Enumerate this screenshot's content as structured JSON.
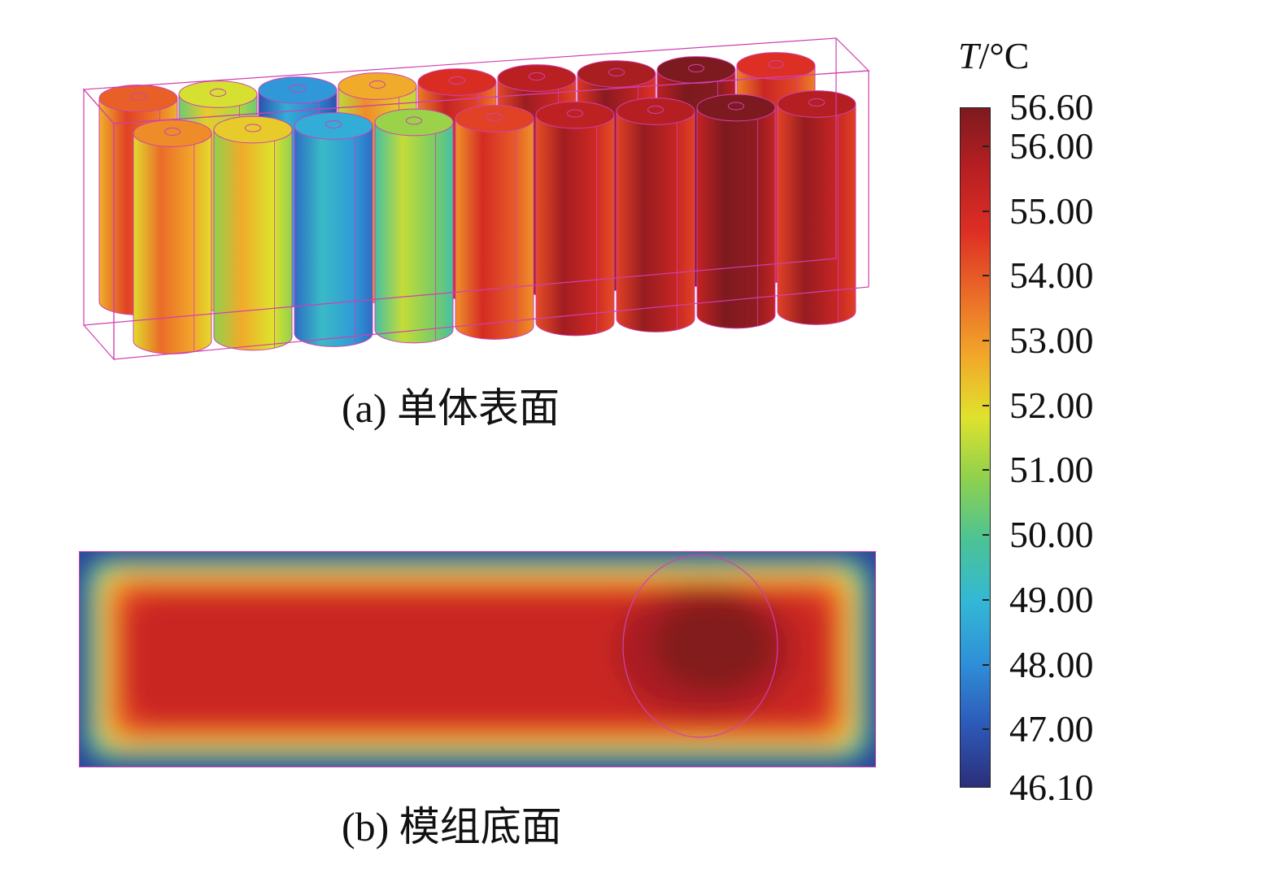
{
  "panels": {
    "a": {
      "caption": "(a) 单体表面"
    },
    "b": {
      "caption": "(b) 模组底面"
    }
  },
  "legend": {
    "symbol": "T",
    "unit": "/°C",
    "min": 46.1,
    "max": 56.6,
    "labels": [
      {
        "text": "56.60",
        "value": 56.6
      },
      {
        "text": "56.00",
        "value": 56.0
      },
      {
        "text": "55.00",
        "value": 55.0
      },
      {
        "text": "54.00",
        "value": 54.0
      },
      {
        "text": "53.00",
        "value": 53.0
      },
      {
        "text": "52.00",
        "value": 52.0
      },
      {
        "text": "51.00",
        "value": 51.0
      },
      {
        "text": "50.00",
        "value": 50.0
      },
      {
        "text": "49.00",
        "value": 49.0
      },
      {
        "text": "48.00",
        "value": 48.0
      },
      {
        "text": "47.00",
        "value": 47.0
      },
      {
        "text": "46.10",
        "value": 46.1
      }
    ],
    "colormap": [
      "#2b2f7a",
      "#2d59b8",
      "#2f8fd8",
      "#33b8d6",
      "#4cc394",
      "#8fd14e",
      "#e0e22c",
      "#f2a62a",
      "#ea6a28",
      "#dd2f24",
      "#b81f22",
      "#7d1a1f"
    ]
  },
  "cells_front_row": [
    52.8,
    51.8,
    48.3,
    50.6,
    54.0,
    55.1,
    55.3,
    56.3,
    55.3
  ],
  "cells_back_row": [
    53.5,
    51.3,
    47.8,
    52.3,
    54.4,
    55.2,
    55.5,
    56.5,
    54.3
  ],
  "outline_color": "#d040b0"
}
